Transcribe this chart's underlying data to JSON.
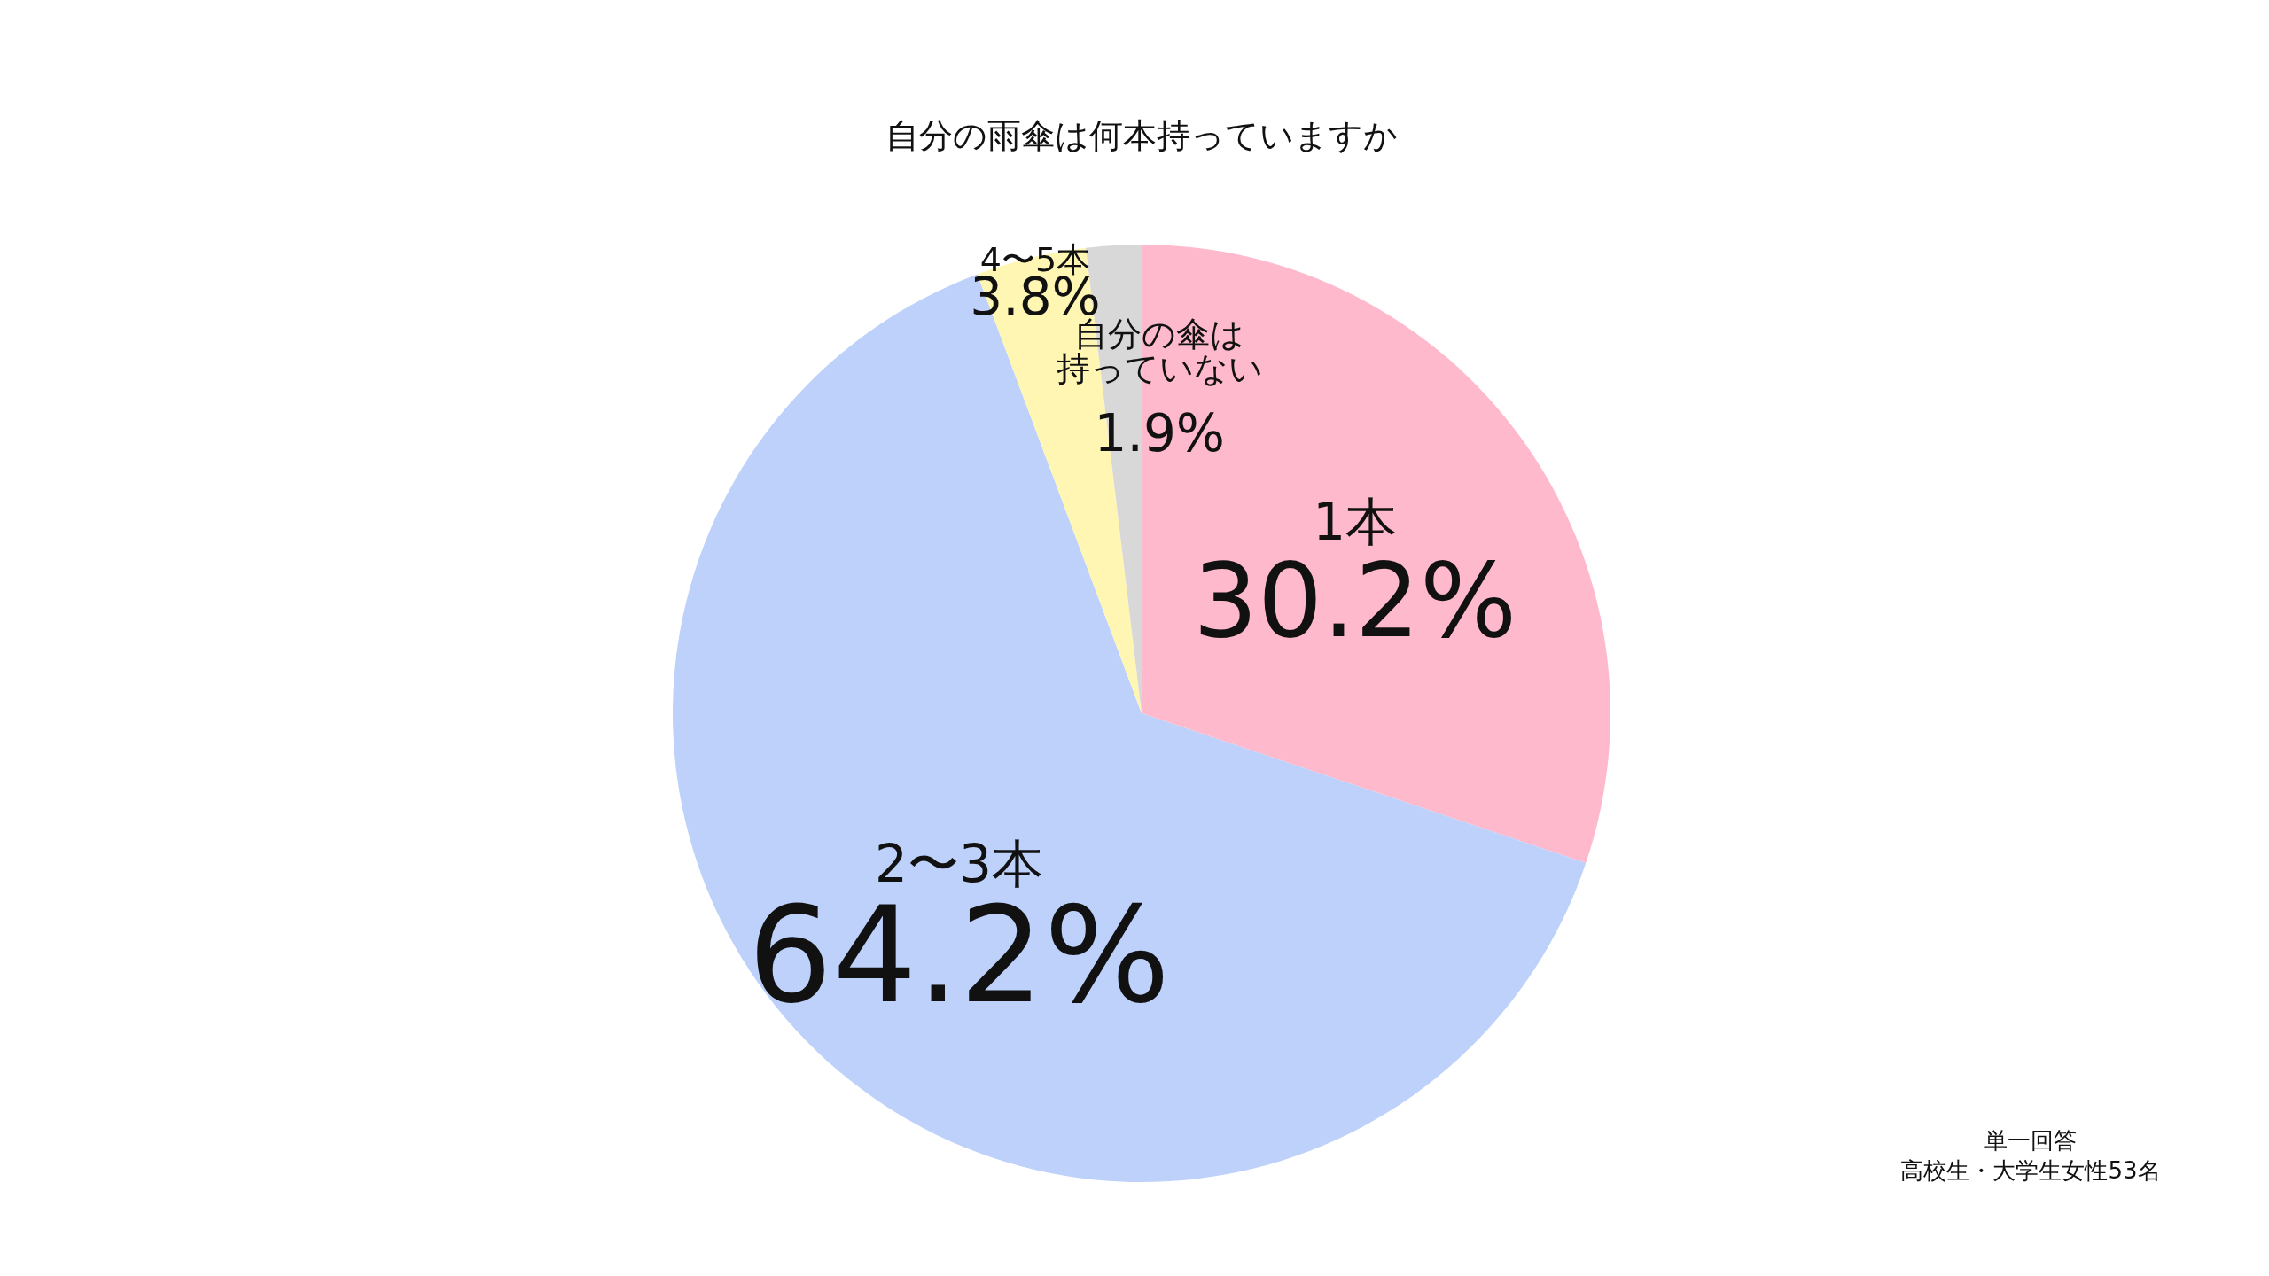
{
  "chart_data": {
    "type": "pie",
    "title": "自分の雨傘は何本持っていますか",
    "categories": [
      "1本",
      "2〜3本",
      "4〜5本",
      "自分の傘は持っていない"
    ],
    "values": [
      30.2,
      64.2,
      3.8,
      1.9
    ],
    "colors": [
      "#ffb9cc",
      "#bdd1fb",
      "#fff6b3",
      "#d8d8d8"
    ],
    "value_labels": [
      "30.2%",
      "64.2%",
      "3.8%",
      "1.9%"
    ],
    "annotations": [
      "単一回答",
      "高校生・大学生女性53名"
    ]
  }
}
